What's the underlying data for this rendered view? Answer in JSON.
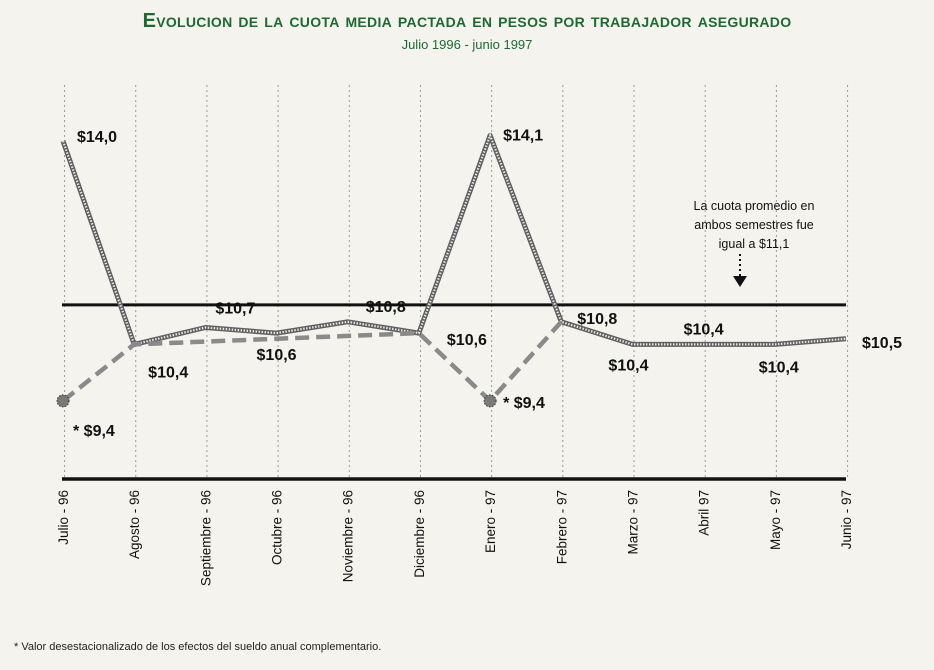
{
  "title": "Evolucion de la cuota media pactada en pesos por trabajador asegurado",
  "subtitle": "Julio 1996 - junio 1997",
  "footnote": "* Valor desestacionalizado de los efectos del sueldo anual complementario.",
  "chart_data": {
    "type": "line",
    "title": "Evolucion de la cuota media pactada en pesos por trabajador asegurado",
    "subtitle": "Julio 1996 - junio 1997",
    "categories": [
      "Julio - 96",
      "Agosto - 96",
      "Septiembre - 96",
      "Octubre - 96",
      "Noviembre - 96",
      "Diciembre - 96",
      "Enero - 97",
      "Febrero - 97",
      "Marzo - 97",
      "Abril 97",
      "Mayo - 97",
      "Junio - 97"
    ],
    "series": [
      {
        "values": [
          14.0,
          10.4,
          10.7,
          10.6,
          10.8,
          10.6,
          14.1,
          10.8,
          10.4,
          10.4,
          10.4,
          10.5
        ],
        "labels": [
          "$14,0",
          "$10,4",
          "$10,7",
          "$10,6",
          "$10,8",
          "$10,6",
          "$14,1",
          "$10,8",
          "$10,4",
          "$10,4",
          "$10,4",
          "$10,5"
        ],
        "style": "dotted",
        "color": "#8a8a8a"
      },
      {
        "values": [
          9.4,
          10.4,
          null,
          null,
          null,
          10.6,
          9.4,
          10.8,
          null,
          null,
          null,
          null
        ],
        "labels": [
          "* $9,4",
          "",
          "",
          "",
          "",
          "",
          "* $9,4",
          "",
          "",
          "",
          "",
          ""
        ],
        "style": "dashed",
        "color": "#8a8a8a"
      }
    ],
    "reference_line": {
      "value": 11.1,
      "annotation": [
        "La cuota promedio en",
        "ambos semestres fue",
        "igual a $11,1"
      ]
    },
    "grid": "vertical dotted",
    "axis_color": "#111111"
  }
}
